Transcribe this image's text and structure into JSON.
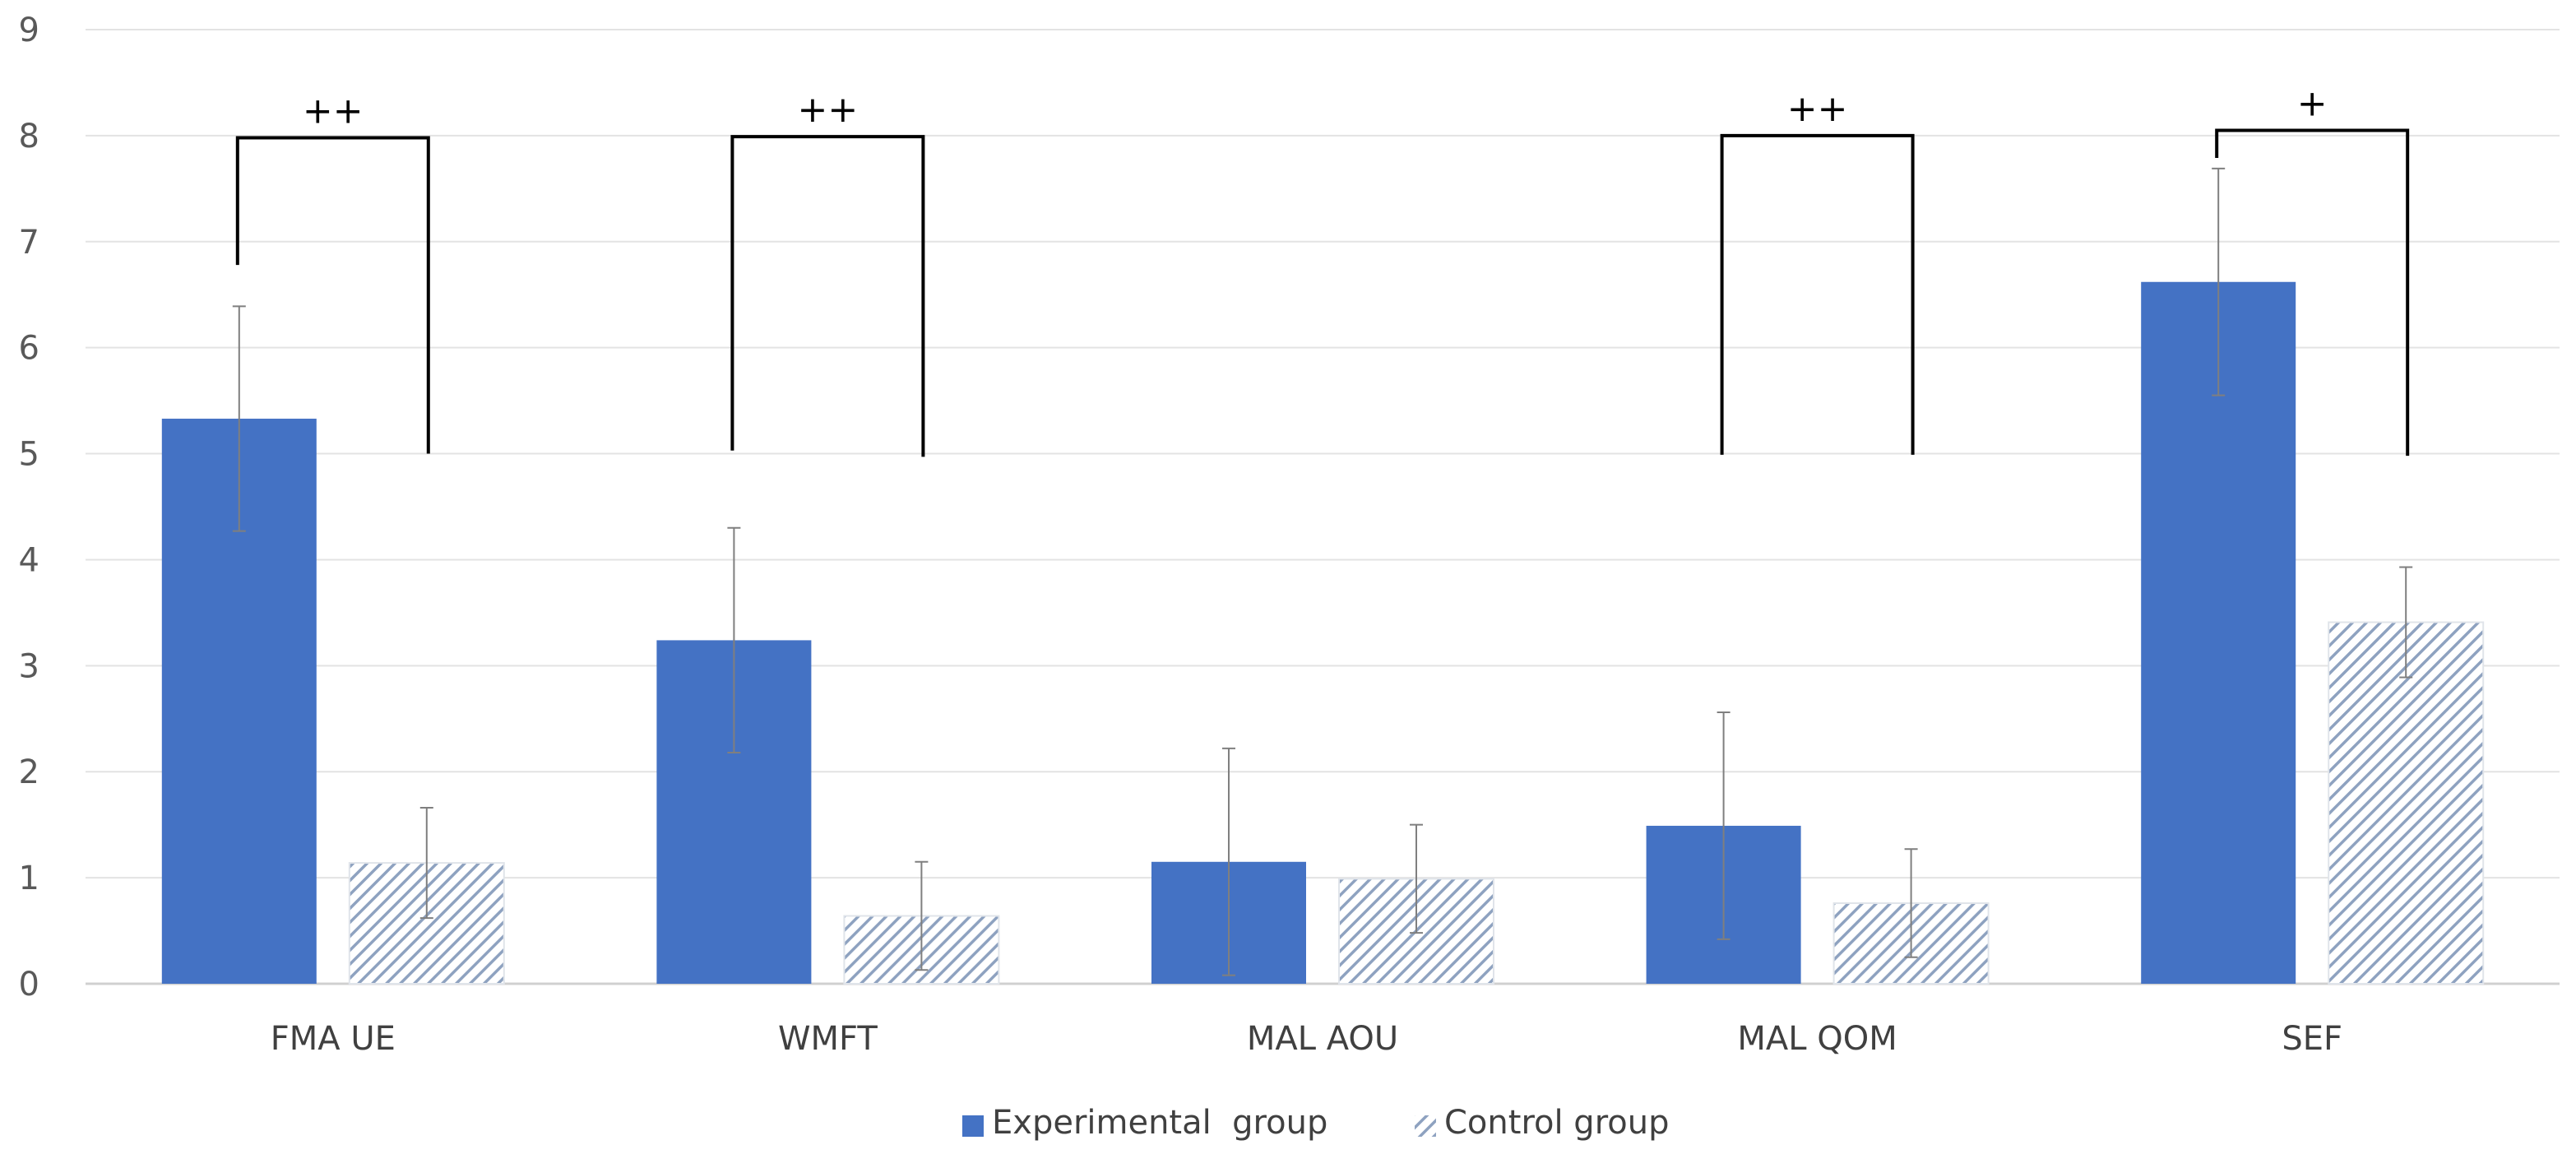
{
  "chart_data": {
    "type": "bar",
    "title": "",
    "xlabel": "",
    "ylabel": "",
    "ylim": [
      0,
      9
    ],
    "yticks": [
      "0",
      "1",
      "2",
      "3",
      "4",
      "5",
      "6",
      "7",
      "8",
      "9"
    ],
    "grid": true,
    "legend_position": "bottom",
    "categories": [
      "FMA UE",
      "WMFT",
      "MAL AOU",
      "MAL QOM",
      "SEF"
    ],
    "series": [
      {
        "name": "Experimental  group",
        "pattern": "solid",
        "color": "#4472C4",
        "values": [
          5.33,
          3.24,
          1.15,
          1.49,
          6.62
        ],
        "error": [
          1.06,
          1.06,
          1.07,
          1.07,
          1.07
        ]
      },
      {
        "name": "Control group",
        "pattern": "hatched",
        "color": "#A5B6CF",
        "values": [
          1.14,
          0.64,
          0.99,
          0.76,
          3.41
        ],
        "error": [
          0.52,
          0.51,
          0.51,
          0.51,
          0.52
        ]
      }
    ],
    "significance": [
      {
        "category": "FMA UE",
        "label": "++",
        "top": 7.98,
        "left_drop_to": 6.78,
        "right_drop_to": 5.0
      },
      {
        "category": "WMFT",
        "label": "++",
        "top": 7.99,
        "left_drop_to": 5.03,
        "right_drop_to": 4.97
      },
      {
        "category": "MAL QOM",
        "label": "++",
        "top": 8.0,
        "left_drop_to": 4.99,
        "right_drop_to": 4.99
      },
      {
        "category": "SEF",
        "label": "+",
        "top": 8.05,
        "left_drop_to": 7.79,
        "right_drop_to": 4.98
      }
    ]
  }
}
